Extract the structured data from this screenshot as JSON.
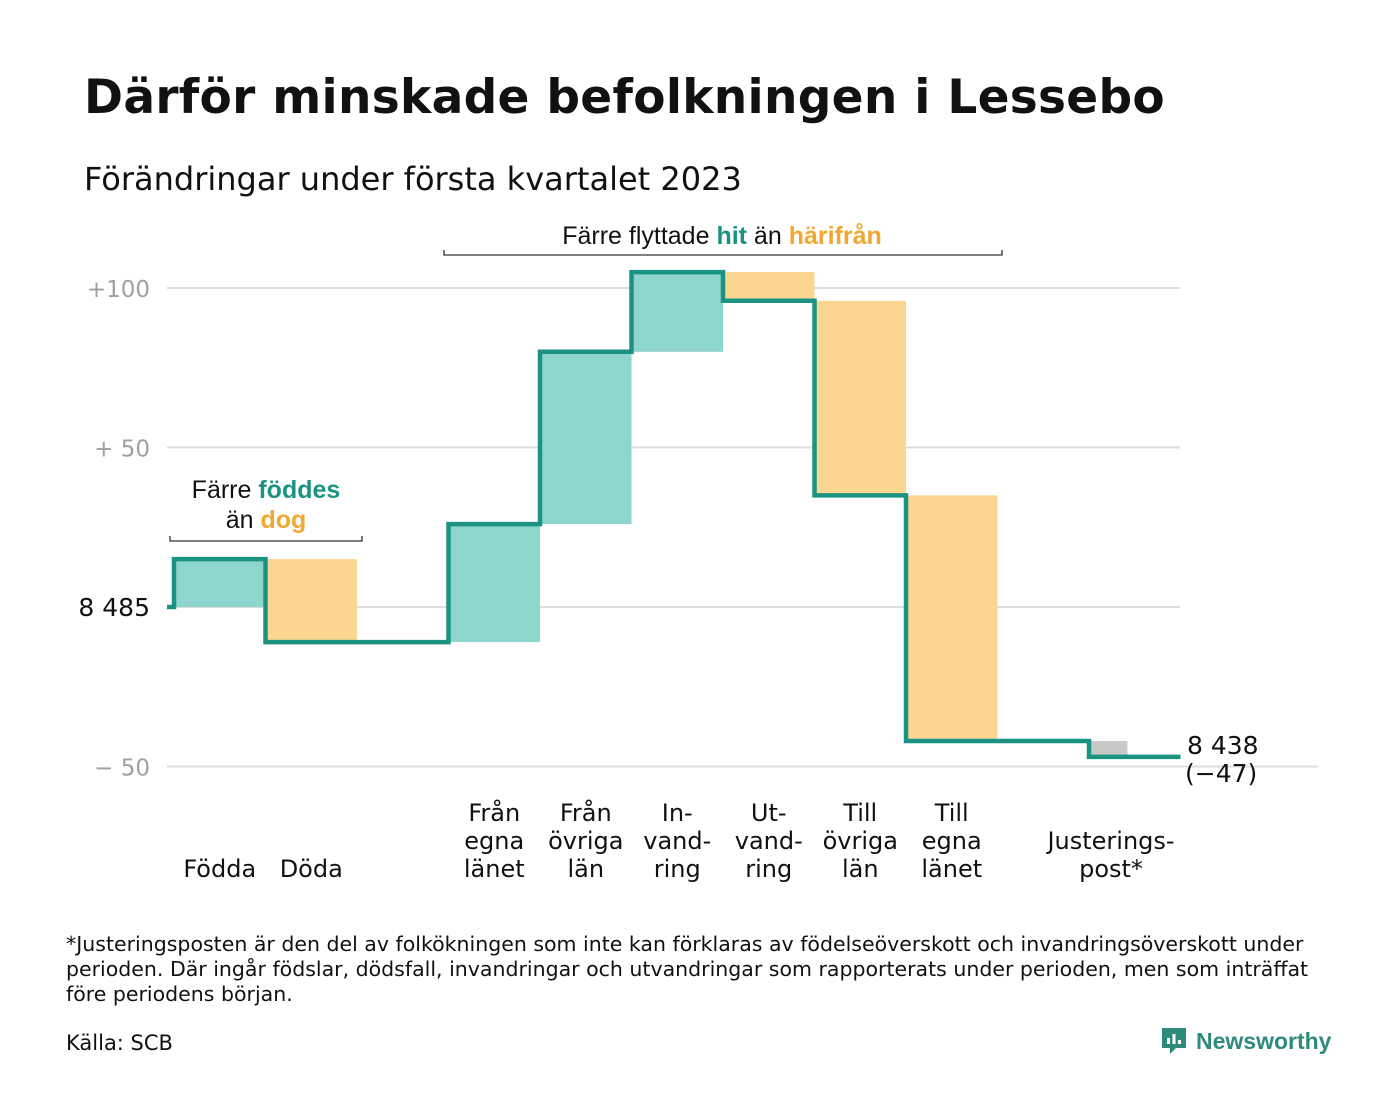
{
  "title": "Därför minskade befolkningen i Lessebo",
  "subtitle": "Förändringar under första kvartalet 2023",
  "colors": {
    "inflow_fill": "#8ed5cb",
    "outflow_fill": "#fbd691",
    "adjustment_fill": "#c8c8c8",
    "line": "#1b9383",
    "accent_teal": "#1b9383",
    "accent_orange": "#f0a830",
    "grid": "#dddddd",
    "tick_text": "#a0a0a0"
  },
  "chart_data": {
    "type": "waterfall",
    "start": {
      "label": "8 485",
      "value": 0
    },
    "end": {
      "label": "8 438",
      "sublabel": "(−47)",
      "value": -47
    },
    "yticks": [
      {
        "value": 100,
        "label": "+100"
      },
      {
        "value": 50,
        "label": "+ 50"
      },
      {
        "value": 0,
        "label": "8 485"
      },
      {
        "value": -50,
        "label": "− 50"
      }
    ],
    "ylim": [
      -52,
      108
    ],
    "steps": [
      {
        "id": "fodda",
        "label_lines": [
          "Födda"
        ],
        "delta": 15,
        "kind": "in"
      },
      {
        "id": "doda",
        "label_lines": [
          "Döda"
        ],
        "delta": -26,
        "kind": "out"
      },
      {
        "id": "gap",
        "label_lines": [],
        "delta": 0,
        "kind": "gap"
      },
      {
        "id": "fran-egna-lanet",
        "label_lines": [
          "Från",
          "egna",
          "länet"
        ],
        "delta": 37,
        "kind": "in"
      },
      {
        "id": "fran-ovriga-lan",
        "label_lines": [
          "Från",
          "övriga",
          "län"
        ],
        "delta": 54,
        "kind": "in"
      },
      {
        "id": "invandring",
        "label_lines": [
          "In-",
          "vand-",
          "ring"
        ],
        "delta": 25,
        "kind": "in"
      },
      {
        "id": "utvandring",
        "label_lines": [
          "Ut-",
          "vand-",
          "ring"
        ],
        "delta": -9,
        "kind": "out"
      },
      {
        "id": "till-ovriga-lan",
        "label_lines": [
          "Till",
          "övriga",
          "län"
        ],
        "delta": -61,
        "kind": "out"
      },
      {
        "id": "till-egna-lanet",
        "label_lines": [
          "Till",
          "egna",
          "länet"
        ],
        "delta": -77,
        "kind": "out"
      },
      {
        "id": "gap2",
        "label_lines": [],
        "delta": 0,
        "kind": "gap"
      },
      {
        "id": "justeringspost",
        "label_lines": [
          "Justerings-",
          "post*"
        ],
        "delta": -5,
        "kind": "adj"
      }
    ],
    "annotations": [
      {
        "id": "births-deaths",
        "line1": "Färre",
        "line1_colored": "föddes",
        "line2": "än",
        "line2_colored": "dog"
      },
      {
        "id": "migration",
        "text_1": "Färre flyttade",
        "text_hit": "hit",
        "text_2": "än",
        "text_harifran": "härifrån"
      }
    ]
  },
  "footnote": "*Justeringsposten är den del av folkökningen som inte kan förklaras av födelseöverskott och invandringsöverskott under perioden. Där ingår födslar, dödsfall, invandringar och utvandringar som rapporterats under perioden, men som inträffat före periodens början.",
  "source": "Källa: SCB",
  "brand": {
    "name": "Newsworthy",
    "icon": "newsworthy-logo-icon"
  }
}
